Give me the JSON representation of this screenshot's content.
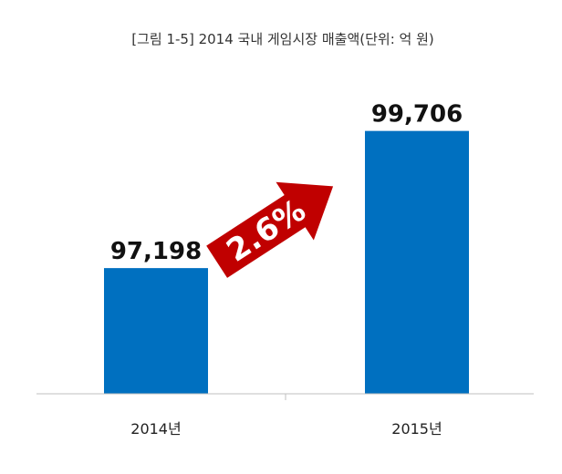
{
  "chart_data": {
    "type": "bar",
    "title": "[그림 1-5] 2014 국내 게임시장 매출액(단위: 억 원)",
    "categories": [
      "2014년",
      "2015년"
    ],
    "values": [
      97198,
      99706
    ],
    "value_labels": [
      "97,198",
      "99,706"
    ],
    "growth_label": "2.6%",
    "bar_color": "#0070c0",
    "arrow_color": "#c00000",
    "grid": false,
    "legend": "none"
  }
}
